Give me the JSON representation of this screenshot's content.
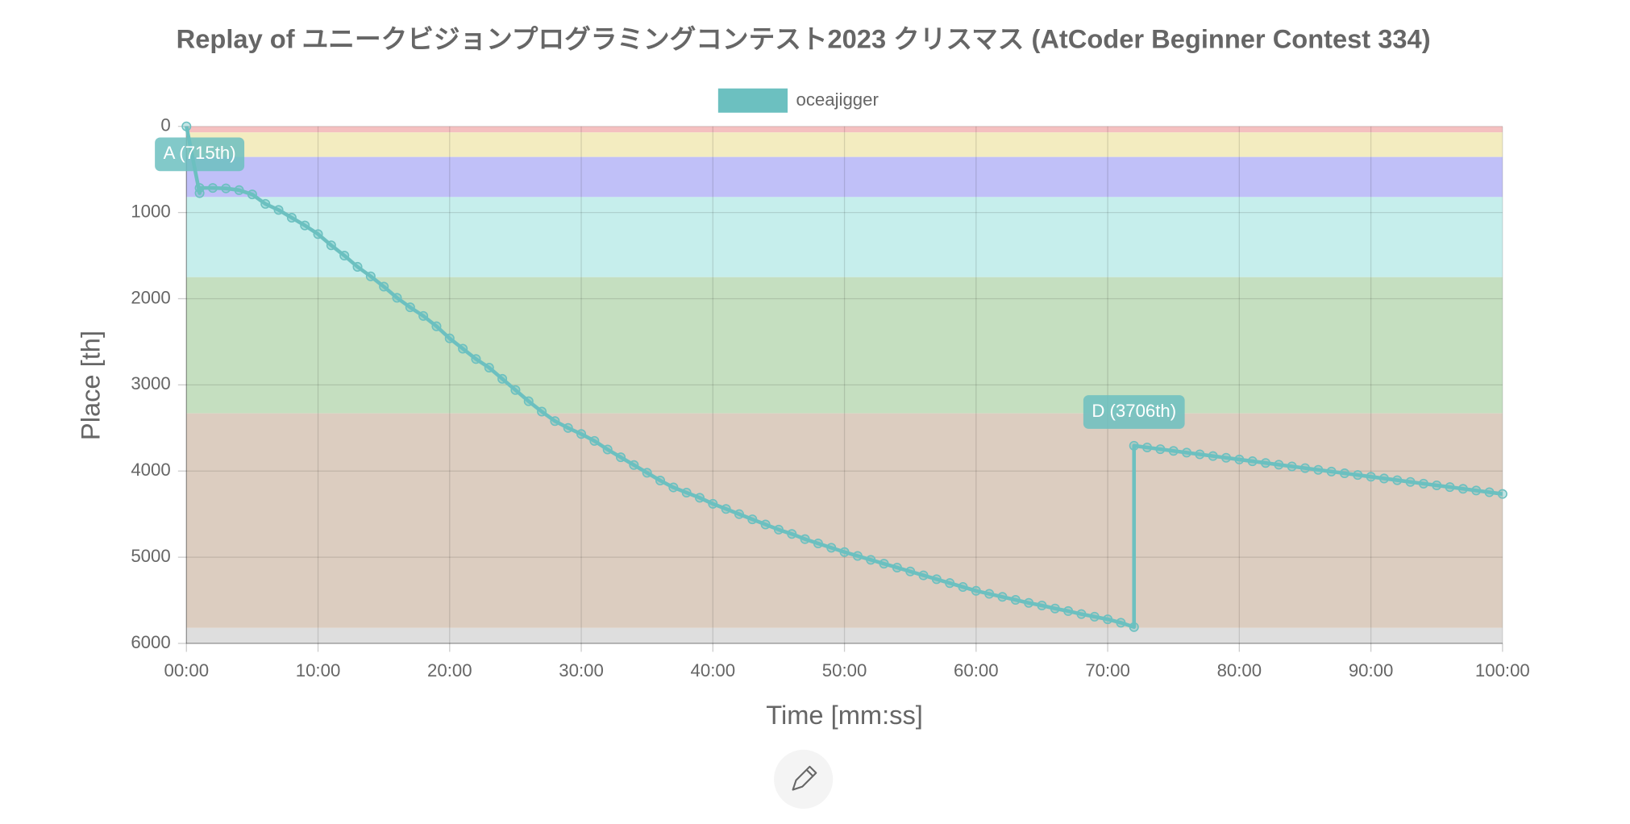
{
  "chart_data": {
    "type": "line",
    "title": "Replay of ユニークビジョンプログラミングコンテスト2023 クリスマス (AtCoder Beginner Contest 334)",
    "x_label": "Time [mm:ss]",
    "y_label": "Place [th]",
    "xlim": [
      0,
      100
    ],
    "xticks": [
      {
        "value": 0,
        "label": "00:00"
      },
      {
        "value": 10,
        "label": "10:00"
      },
      {
        "value": 20,
        "label": "20:00"
      },
      {
        "value": 30,
        "label": "30:00"
      },
      {
        "value": 40,
        "label": "40:00"
      },
      {
        "value": 50,
        "label": "50:00"
      },
      {
        "value": 60,
        "label": "60:00"
      },
      {
        "value": 70,
        "label": "70:00"
      },
      {
        "value": 80,
        "label": "80:00"
      },
      {
        "value": 90,
        "label": "90:00"
      },
      {
        "value": 100,
        "label": "100:00"
      }
    ],
    "ylim": [
      0,
      6000
    ],
    "y_reversed": true,
    "yticks": [
      0,
      1000,
      2000,
      3000,
      4000,
      5000,
      6000
    ],
    "grid": true,
    "bands": [
      {
        "from": 0,
        "to": 70,
        "color": "#f4c0c0"
      },
      {
        "from": 70,
        "to": 355,
        "color": "#f3ecc0"
      },
      {
        "from": 355,
        "to": 820,
        "color": "#c0c0f8"
      },
      {
        "from": 820,
        "to": 1750,
        "color": "#c6eeec"
      },
      {
        "from": 1750,
        "to": 3330,
        "color": "#c5dfc0"
      },
      {
        "from": 3330,
        "to": 5820,
        "color": "#dccdc0"
      },
      {
        "from": 5820,
        "to": 6000,
        "color": "#dedede"
      }
    ],
    "series": [
      {
        "name": "oceajigger",
        "color": "#6cc0c0",
        "x": [
          0,
          1,
          1,
          2,
          3,
          4,
          5,
          6,
          7,
          8,
          9,
          10,
          11,
          12,
          13,
          14,
          15,
          16,
          17,
          18,
          19,
          20,
          21,
          22,
          23,
          24,
          25,
          26,
          27,
          28,
          29,
          30,
          31,
          32,
          33,
          34,
          35,
          36,
          37,
          38,
          39,
          40,
          41,
          42,
          43,
          44,
          45,
          46,
          47,
          48,
          49,
          50,
          51,
          52,
          53,
          54,
          55,
          56,
          57,
          58,
          59,
          60,
          61,
          62,
          63,
          64,
          65,
          66,
          67,
          68,
          69,
          70,
          71,
          72,
          72,
          73,
          74,
          75,
          76,
          77,
          78,
          79,
          80,
          81,
          82,
          83,
          84,
          85,
          86,
          87,
          88,
          89,
          90,
          91,
          92,
          93,
          94,
          95,
          96,
          97,
          98,
          99,
          100
        ],
        "values": [
          0,
          775,
          715,
          715,
          720,
          740,
          790,
          900,
          970,
          1060,
          1150,
          1250,
          1380,
          1500,
          1630,
          1740,
          1860,
          1990,
          2100,
          2200,
          2320,
          2460,
          2580,
          2700,
          2800,
          2930,
          3060,
          3190,
          3310,
          3420,
          3500,
          3570,
          3650,
          3750,
          3840,
          3930,
          4020,
          4110,
          4190,
          4250,
          4310,
          4380,
          4440,
          4500,
          4560,
          4620,
          4680,
          4730,
          4790,
          4840,
          4890,
          4940,
          4985,
          5030,
          5075,
          5120,
          5165,
          5210,
          5255,
          5300,
          5345,
          5390,
          5425,
          5460,
          5495,
          5530,
          5560,
          5595,
          5625,
          5660,
          5690,
          5720,
          5760,
          5810,
          3706,
          3726,
          3746,
          3766,
          3786,
          3806,
          3826,
          3846,
          3866,
          3886,
          3906,
          3926,
          3946,
          3966,
          3986,
          4006,
          4026,
          4046,
          4066,
          4086,
          4106,
          4126,
          4146,
          4166,
          4186,
          4206,
          4226,
          4246,
          4266
        ]
      }
    ],
    "annotations": [
      {
        "text": "A (715th)",
        "x": 1,
        "y": 715
      },
      {
        "text": "D (3706th)",
        "x": 72,
        "y": 3706
      }
    ]
  }
}
